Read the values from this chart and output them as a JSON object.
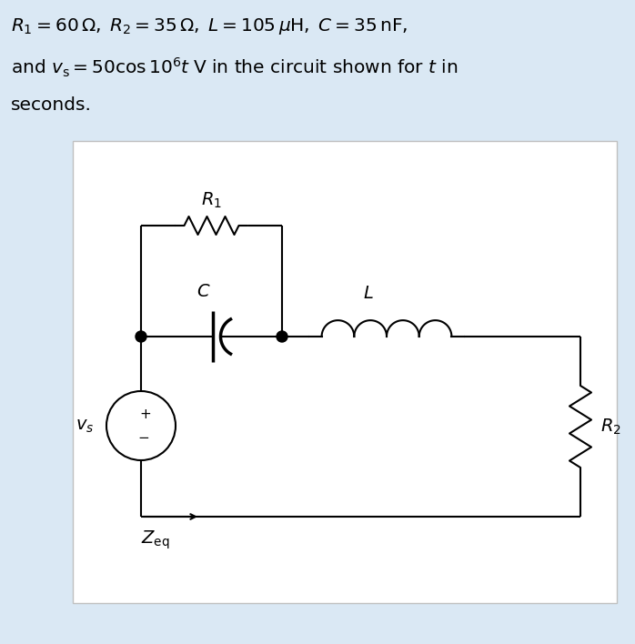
{
  "bg_color": "#dae8f4",
  "circuit_bg": "#ffffff",
  "circuit_border": "#c0c0c0",
  "text_color": "#000000",
  "line_color": "#000000",
  "line_width": 1.5,
  "font_size_title": 14.5,
  "font_size_labels": 13,
  "label_R1": "$R_1$",
  "label_R2": "$R_2$",
  "label_L": "$L$",
  "label_C": "$C$",
  "label_vs": "$v_s$",
  "label_Zeq": "$Z_{\\mathrm{eq}}$",
  "title_line1": "$R_1 = 60\\,\\Omega,\\; R_2 = 35\\,\\Omega,\\; L = 105\\,\\mu\\mathrm{H},\\; C = 35\\,\\mathrm{nF},$",
  "title_line2": "and $v_\\mathrm{s} = 50\\cos 10^6 t\\;\\mathrm{V}$ in the circuit shown for $t$ in",
  "title_line3": "seconds."
}
